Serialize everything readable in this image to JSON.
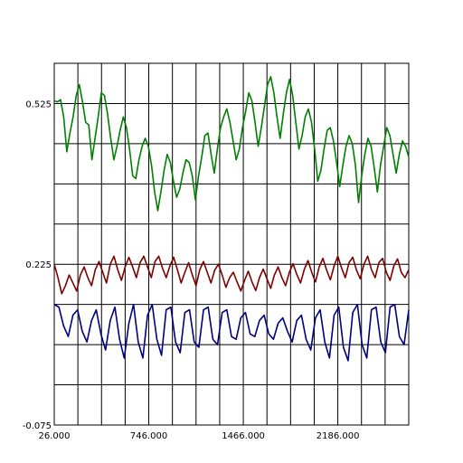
{
  "chart_data": {
    "type": "line",
    "title": "",
    "xlabel": "",
    "ylabel": "",
    "xlim": [
      26,
      2726
    ],
    "ylim": [
      -0.075,
      0.6
    ],
    "x_ticks": [
      26,
      746,
      1466,
      2186
    ],
    "x_tick_labels": [
      "26.000",
      "746.000",
      "1466.000",
      "2186.000"
    ],
    "y_ticks": [
      -0.075,
      0.225,
      0.525
    ],
    "y_tick_labels": [
      "-0.075",
      "0.225",
      "0.525"
    ],
    "grid": true,
    "legend": "none",
    "series": [
      {
        "color": "#008000",
        "values": [
          0.53,
          0.528,
          0.532,
          0.5,
          0.435,
          0.47,
          0.5,
          0.54,
          0.56,
          0.528,
          0.49,
          0.485,
          0.42,
          0.46,
          0.5,
          0.545,
          0.54,
          0.505,
          0.46,
          0.42,
          0.445,
          0.475,
          0.5,
          0.48,
          0.44,
          0.39,
          0.385,
          0.42,
          0.445,
          0.46,
          0.445,
          0.41,
          0.36,
          0.325,
          0.36,
          0.4,
          0.43,
          0.415,
          0.38,
          0.35,
          0.365,
          0.395,
          0.42,
          0.415,
          0.39,
          0.345,
          0.39,
          0.425,
          0.465,
          0.47,
          0.43,
          0.395,
          0.44,
          0.48,
          0.5,
          0.515,
          0.49,
          0.455,
          0.42,
          0.44,
          0.48,
          0.51,
          0.545,
          0.53,
          0.49,
          0.445,
          0.48,
          0.52,
          0.56,
          0.575,
          0.545,
          0.5,
          0.46,
          0.505,
          0.545,
          0.57,
          0.54,
          0.49,
          0.44,
          0.465,
          0.5,
          0.515,
          0.49,
          0.44,
          0.38,
          0.4,
          0.44,
          0.475,
          0.48,
          0.455,
          0.415,
          0.37,
          0.41,
          0.445,
          0.465,
          0.45,
          0.41,
          0.34,
          0.39,
          0.43,
          0.46,
          0.445,
          0.405,
          0.36,
          0.41,
          0.445,
          0.48,
          0.465,
          0.43,
          0.395,
          0.43,
          0.455,
          0.445,
          0.425
        ]
      },
      {
        "color": "#800000",
        "values": [
          0.225,
          0.2,
          0.17,
          0.185,
          0.205,
          0.19,
          0.175,
          0.205,
          0.22,
          0.2,
          0.185,
          0.215,
          0.23,
          0.21,
          0.19,
          0.225,
          0.24,
          0.215,
          0.195,
          0.22,
          0.238,
          0.22,
          0.2,
          0.228,
          0.24,
          0.22,
          0.2,
          0.23,
          0.24,
          0.218,
          0.2,
          0.222,
          0.238,
          0.215,
          0.19,
          0.21,
          0.228,
          0.205,
          0.185,
          0.215,
          0.23,
          0.21,
          0.19,
          0.214,
          0.225,
          0.205,
          0.182,
          0.2,
          0.21,
          0.192,
          0.175,
          0.195,
          0.212,
          0.192,
          0.176,
          0.2,
          0.216,
          0.198,
          0.18,
          0.205,
          0.22,
          0.2,
          0.185,
          0.21,
          0.226,
          0.206,
          0.19,
          0.215,
          0.232,
          0.21,
          0.192,
          0.22,
          0.236,
          0.214,
          0.196,
          0.222,
          0.24,
          0.218,
          0.2,
          0.228,
          0.238,
          0.214,
          0.198,
          0.225,
          0.24,
          0.215,
          0.2,
          0.228,
          0.236,
          0.21,
          0.195,
          0.222,
          0.235,
          0.21,
          0.2,
          0.215
        ]
      },
      {
        "color": "#000080",
        "values": [
          0.15,
          0.145,
          0.11,
          0.09,
          0.13,
          0.14,
          0.1,
          0.08,
          0.12,
          0.14,
          0.095,
          0.065,
          0.12,
          0.145,
          0.085,
          0.05,
          0.115,
          0.15,
          0.08,
          0.05,
          0.13,
          0.15,
          0.085,
          0.055,
          0.14,
          0.145,
          0.08,
          0.06,
          0.135,
          0.14,
          0.08,
          0.07,
          0.14,
          0.145,
          0.085,
          0.075,
          0.135,
          0.14,
          0.09,
          0.085,
          0.125,
          0.135,
          0.095,
          0.09,
          0.12,
          0.13,
          0.095,
          0.085,
          0.115,
          0.125,
          0.1,
          0.08,
          0.12,
          0.13,
          0.085,
          0.065,
          0.125,
          0.14,
          0.08,
          0.05,
          0.13,
          0.145,
          0.07,
          0.045,
          0.135,
          0.15,
          0.075,
          0.05,
          0.14,
          0.145,
          0.08,
          0.06,
          0.145,
          0.15,
          0.09,
          0.075,
          0.14
        ]
      }
    ]
  }
}
